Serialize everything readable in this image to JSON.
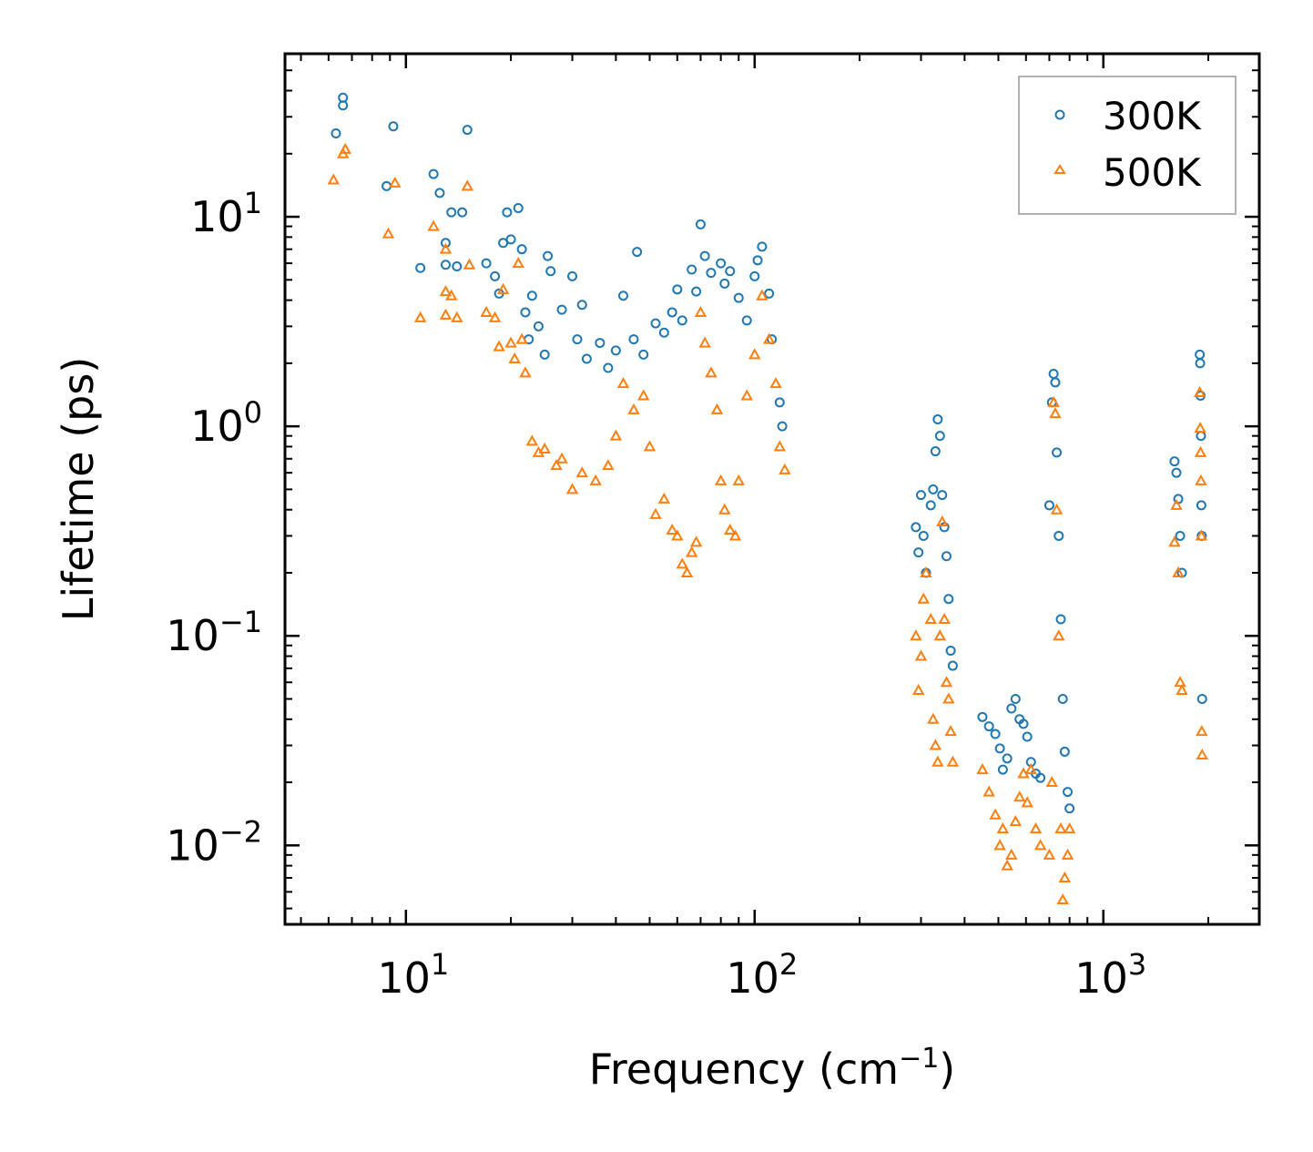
{
  "chart_data": {
    "type": "scatter",
    "xscale": "log",
    "yscale": "log",
    "xlabel_main": "Frequency (cm",
    "xlabel_sup": "−1",
    "xlabel_close": ")",
    "ylabel": "Lifetime (ps)",
    "xlim": [
      4.5,
      2800
    ],
    "ylim": [
      0.0042,
      60
    ],
    "x_ticks": [
      {
        "value": 10,
        "base": "10",
        "exp": "1"
      },
      {
        "value": 100,
        "base": "10",
        "exp": "2"
      },
      {
        "value": 1000,
        "base": "10",
        "exp": "3"
      }
    ],
    "y_ticks": [
      {
        "value": 10,
        "base": "10",
        "exp": "1"
      },
      {
        "value": 1,
        "base": "10",
        "exp": "0"
      },
      {
        "value": 0.1,
        "base": "10",
        "exp": "−1"
      },
      {
        "value": 0.01,
        "base": "10",
        "exp": "−2"
      }
    ],
    "legend_position": "top-right",
    "series": [
      {
        "name": "300K",
        "marker": "circle",
        "color": "#1f77b4",
        "points": [
          [
            6.3,
            25
          ],
          [
            6.6,
            37
          ],
          [
            6.6,
            34
          ],
          [
            9.2,
            27
          ],
          [
            8.8,
            14
          ],
          [
            12,
            16
          ],
          [
            12.5,
            13
          ],
          [
            13,
            7.5
          ],
          [
            13.5,
            10.5
          ],
          [
            14.5,
            10.5
          ],
          [
            15,
            26
          ],
          [
            14,
            5.8
          ],
          [
            13,
            5.9
          ],
          [
            11,
            5.7
          ],
          [
            17,
            6
          ],
          [
            18,
            5.2
          ],
          [
            18.5,
            4.3
          ],
          [
            19,
            7.5
          ],
          [
            19.5,
            10.5
          ],
          [
            20,
            7.8
          ],
          [
            21,
            11
          ],
          [
            21.5,
            7
          ],
          [
            22,
            3.5
          ],
          [
            22.5,
            2.6
          ],
          [
            23,
            4.2
          ],
          [
            24,
            3
          ],
          [
            25,
            2.2
          ],
          [
            25.5,
            6.5
          ],
          [
            26,
            5.5
          ],
          [
            28,
            3.6
          ],
          [
            30,
            5.2
          ],
          [
            31,
            2.6
          ],
          [
            32,
            3.8
          ],
          [
            33,
            2.1
          ],
          [
            36,
            2.5
          ],
          [
            38,
            1.9
          ],
          [
            40,
            2.3
          ],
          [
            42,
            4.2
          ],
          [
            45,
            2.6
          ],
          [
            46,
            6.8
          ],
          [
            48,
            2.2
          ],
          [
            52,
            3.1
          ],
          [
            55,
            2.8
          ],
          [
            58,
            3.5
          ],
          [
            60,
            4.5
          ],
          [
            62,
            3.2
          ],
          [
            66,
            5.6
          ],
          [
            68,
            4.4
          ],
          [
            70,
            9.2
          ],
          [
            72,
            6.5
          ],
          [
            75,
            5.4
          ],
          [
            80,
            6
          ],
          [
            82,
            4.8
          ],
          [
            85,
            5.5
          ],
          [
            90,
            4.1
          ],
          [
            95,
            3.2
          ],
          [
            100,
            5.2
          ],
          [
            102,
            6.2
          ],
          [
            105,
            7.2
          ],
          [
            110,
            4.3
          ],
          [
            112,
            2.6
          ],
          [
            118,
            1.3
          ],
          [
            120,
            1.0
          ],
          [
            290,
            0.33
          ],
          [
            295,
            0.25
          ],
          [
            300,
            0.47
          ],
          [
            305,
            0.3
          ],
          [
            310,
            0.2
          ],
          [
            320,
            0.42
          ],
          [
            325,
            0.5
          ],
          [
            330,
            0.76
          ],
          [
            335,
            1.08
          ],
          [
            340,
            0.9
          ],
          [
            345,
            0.47
          ],
          [
            350,
            0.33
          ],
          [
            355,
            0.24
          ],
          [
            360,
            0.15
          ],
          [
            365,
            0.085
          ],
          [
            370,
            0.072
          ],
          [
            450,
            0.041
          ],
          [
            470,
            0.037
          ],
          [
            490,
            0.034
          ],
          [
            505,
            0.029
          ],
          [
            515,
            0.023
          ],
          [
            530,
            0.026
          ],
          [
            545,
            0.045
          ],
          [
            560,
            0.05
          ],
          [
            575,
            0.04
          ],
          [
            590,
            0.038
          ],
          [
            605,
            0.033
          ],
          [
            620,
            0.025
          ],
          [
            640,
            0.022
          ],
          [
            660,
            0.021
          ],
          [
            700,
            0.42
          ],
          [
            712,
            1.3
          ],
          [
            720,
            1.78
          ],
          [
            728,
            1.62
          ],
          [
            735,
            0.75
          ],
          [
            745,
            0.3
          ],
          [
            755,
            0.12
          ],
          [
            765,
            0.05
          ],
          [
            775,
            0.028
          ],
          [
            790,
            0.018
          ],
          [
            800,
            0.015
          ],
          [
            1600,
            0.68
          ],
          [
            1620,
            0.6
          ],
          [
            1640,
            0.45
          ],
          [
            1660,
            0.3
          ],
          [
            1680,
            0.2
          ],
          [
            1890,
            2.2
          ],
          [
            1895,
            2.0
          ],
          [
            1900,
            1.4
          ],
          [
            1905,
            0.9
          ],
          [
            1910,
            0.42
          ],
          [
            1915,
            0.3
          ],
          [
            1920,
            0.05
          ]
        ]
      },
      {
        "name": "500K",
        "marker": "triangle",
        "color": "#ff7f0e",
        "points": [
          [
            6.2,
            15
          ],
          [
            6.7,
            21
          ],
          [
            6.6,
            20
          ],
          [
            8.9,
            8.3
          ],
          [
            9.3,
            14.5
          ],
          [
            11,
            3.3
          ],
          [
            12,
            9
          ],
          [
            13,
            4.4
          ],
          [
            13.5,
            4.2
          ],
          [
            13,
            3.4
          ],
          [
            14,
            3.3
          ],
          [
            13,
            7
          ],
          [
            15,
            14
          ],
          [
            15.2,
            5.9
          ],
          [
            17,
            3.5
          ],
          [
            18,
            3.3
          ],
          [
            18.5,
            2.4
          ],
          [
            19,
            4.5
          ],
          [
            20,
            2.5
          ],
          [
            20.5,
            2.1
          ],
          [
            21,
            6
          ],
          [
            21.5,
            2.6
          ],
          [
            22,
            1.8
          ],
          [
            23,
            0.85
          ],
          [
            24,
            0.75
          ],
          [
            25,
            0.78
          ],
          [
            27,
            0.65
          ],
          [
            28,
            0.7
          ],
          [
            30,
            0.5
          ],
          [
            32,
            0.6
          ],
          [
            35,
            0.55
          ],
          [
            38,
            0.65
          ],
          [
            40,
            0.9
          ],
          [
            42,
            1.6
          ],
          [
            45,
            1.2
          ],
          [
            48,
            1.4
          ],
          [
            50,
            0.8
          ],
          [
            52,
            0.38
          ],
          [
            55,
            0.45
          ],
          [
            58,
            0.32
          ],
          [
            60,
            0.3
          ],
          [
            62,
            0.22
          ],
          [
            64,
            0.2
          ],
          [
            66,
            0.25
          ],
          [
            68,
            0.28
          ],
          [
            70,
            3.5
          ],
          [
            72,
            2.5
          ],
          [
            75,
            1.8
          ],
          [
            78,
            1.2
          ],
          [
            80,
            0.55
          ],
          [
            82,
            0.4
          ],
          [
            85,
            0.32
          ],
          [
            88,
            0.3
          ],
          [
            90,
            0.55
          ],
          [
            95,
            1.4
          ],
          [
            100,
            2.2
          ],
          [
            105,
            4.2
          ],
          [
            110,
            2.6
          ],
          [
            115,
            1.6
          ],
          [
            118,
            0.8
          ],
          [
            122,
            0.62
          ],
          [
            290,
            0.1
          ],
          [
            295,
            0.055
          ],
          [
            300,
            0.08
          ],
          [
            305,
            0.15
          ],
          [
            310,
            0.2
          ],
          [
            320,
            0.12
          ],
          [
            325,
            0.04
          ],
          [
            330,
            0.03
          ],
          [
            335,
            0.025
          ],
          [
            340,
            0.1
          ],
          [
            345,
            0.35
          ],
          [
            350,
            0.12
          ],
          [
            355,
            0.06
          ],
          [
            360,
            0.05
          ],
          [
            365,
            0.035
          ],
          [
            370,
            0.025
          ],
          [
            450,
            0.023
          ],
          [
            470,
            0.018
          ],
          [
            490,
            0.014
          ],
          [
            505,
            0.01
          ],
          [
            515,
            0.012
          ],
          [
            530,
            0.008
          ],
          [
            545,
            0.009
          ],
          [
            560,
            0.013
          ],
          [
            575,
            0.017
          ],
          [
            590,
            0.022
          ],
          [
            605,
            0.016
          ],
          [
            620,
            0.023
          ],
          [
            640,
            0.012
          ],
          [
            660,
            0.01
          ],
          [
            700,
            0.009
          ],
          [
            712,
            0.02
          ],
          [
            720,
            1.3
          ],
          [
            728,
            1.15
          ],
          [
            735,
            0.4
          ],
          [
            745,
            0.1
          ],
          [
            755,
            0.012
          ],
          [
            765,
            0.0055
          ],
          [
            775,
            0.007
          ],
          [
            790,
            0.009
          ],
          [
            800,
            0.012
          ],
          [
            1600,
            0.28
          ],
          [
            1620,
            0.42
          ],
          [
            1640,
            0.2
          ],
          [
            1660,
            0.06
          ],
          [
            1680,
            0.055
          ],
          [
            1890,
            1.45
          ],
          [
            1895,
            0.98
          ],
          [
            1900,
            0.75
          ],
          [
            1905,
            0.55
          ],
          [
            1910,
            0.3
          ],
          [
            1915,
            0.035
          ],
          [
            1920,
            0.027
          ]
        ]
      }
    ]
  }
}
